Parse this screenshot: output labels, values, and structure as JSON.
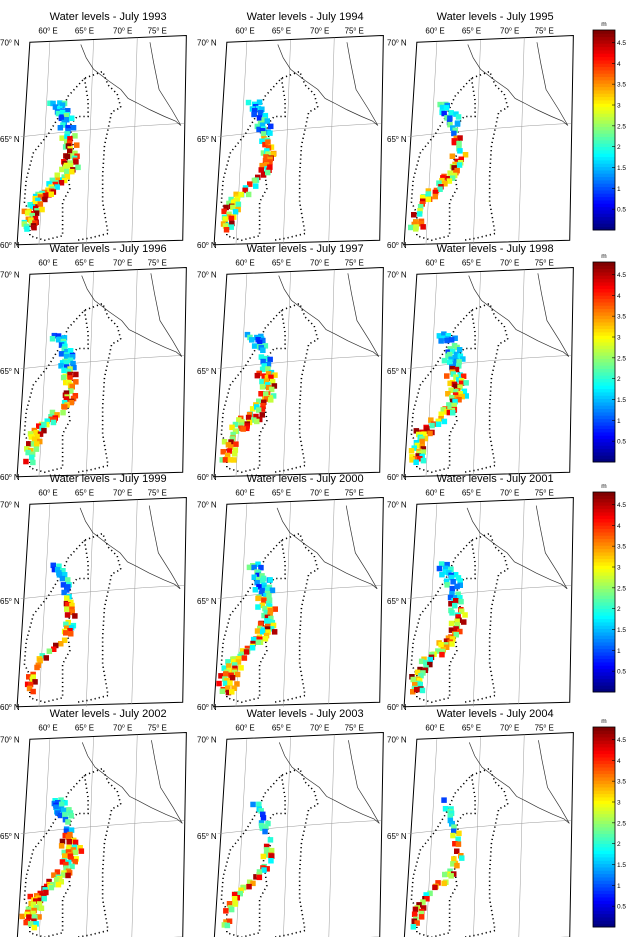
{
  "figure": {
    "rows": [
      {
        "panels": [
          {
            "title": "Water levels - July 1993",
            "scale": 1.0
          },
          {
            "title": "Water levels - July 1994",
            "scale": 0.85
          },
          {
            "title": "Water levels - July 1995",
            "scale": 0.65
          }
        ],
        "colorbar": {
          "unit": "m",
          "ticks": [
            "0.5",
            "1",
            "1.5",
            "2",
            "2.5",
            "3",
            "3.5",
            "4",
            "4.5"
          ]
        }
      },
      {
        "panels": [
          {
            "title": "Water levels - July 1996",
            "scale": 0.7
          },
          {
            "title": "Water levels - July 1997",
            "scale": 0.9
          },
          {
            "title": "Water levels - July 1998",
            "scale": 0.9
          }
        ],
        "colorbar": {
          "unit": "m",
          "ticks": [
            "0.5",
            "1",
            "1.5",
            "2",
            "2.5",
            "3",
            "3.5",
            "4",
            "4.5"
          ]
        }
      },
      {
        "panels": [
          {
            "title": "Water levels - July 1999",
            "scale": 0.5
          },
          {
            "title": "Water levels - July 2000",
            "scale": 1.0
          },
          {
            "title": "Water levels - July 2001",
            "scale": 0.8
          }
        ],
        "colorbar": {
          "unit": "m",
          "ticks": [
            "0.5",
            "1",
            "1.5",
            "2",
            "2.5",
            "3",
            "3.5",
            "4",
            "4.5"
          ]
        }
      },
      {
        "panels": [
          {
            "title": "Water levels - July 2002",
            "scale": 1.0
          },
          {
            "title": "Water levels - July 2003",
            "scale": 0.5
          },
          {
            "title": "Water levels - July 2004",
            "scale": 0.5
          }
        ],
        "colorbar": {
          "unit": "m",
          "ticks": [
            "0.5",
            "1",
            "1.5",
            "2",
            "2.5",
            "3",
            "3.5",
            "4",
            "4.5"
          ]
        }
      }
    ],
    "lon_labels": [
      "60",
      "65",
      "70",
      "75"
    ],
    "lon_suffix": "E",
    "lat_labels": [
      "70",
      "65",
      "60"
    ],
    "lat_suffix": "N",
    "degree_symbol": "o",
    "colormap": "jet",
    "value_range_m": [
      0,
      4.8
    ]
  }
}
